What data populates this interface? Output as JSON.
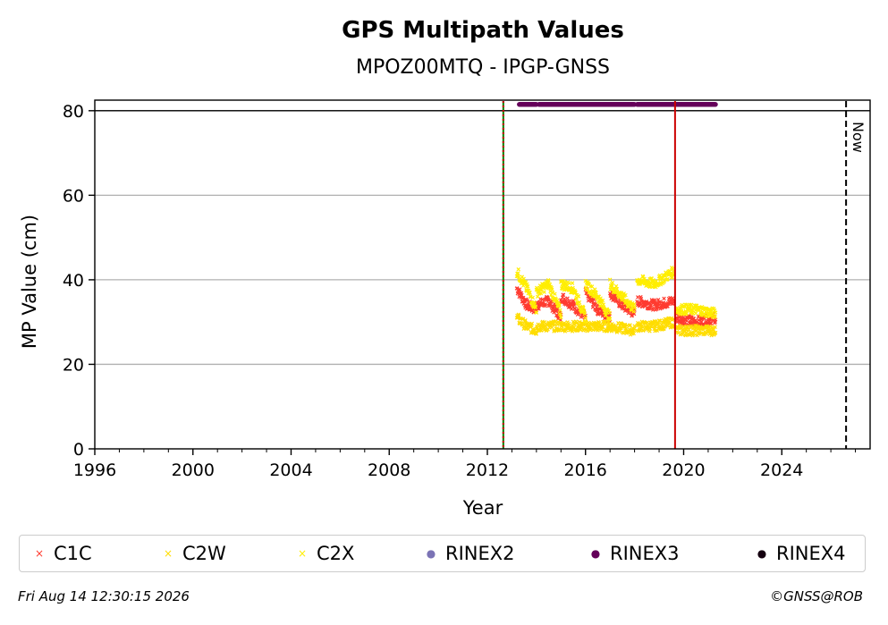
{
  "chart_data": {
    "type": "scatter",
    "title": "GPS Multipath Values",
    "subtitle": "MPOZ00MTQ - IPGP-GNSS",
    "xlabel": "Year",
    "ylabel": "MP Value (cm)",
    "xlim": [
      1996,
      2027.6
    ],
    "ylim": [
      0,
      82.5
    ],
    "x_ticks": [
      1996,
      2000,
      2004,
      2008,
      2012,
      2016,
      2020,
      2024
    ],
    "y_ticks": [
      0,
      20,
      40,
      60,
      80
    ],
    "grid": "horizontal",
    "reference_line_y": 80,
    "vertical_lines": [
      {
        "x": 2012.65,
        "color": "#008000",
        "style": "solid"
      },
      {
        "x": 2012.65,
        "color": "#cc0000",
        "style": "dotted"
      },
      {
        "x": 2019.65,
        "color": "#cc0000",
        "style": "solid"
      },
      {
        "x": 2026.62,
        "color": "#000000",
        "style": "dashed",
        "label": "Now"
      }
    ],
    "series": [
      {
        "name": "C1C",
        "color": "#ff3b30",
        "marker": "x",
        "segments": [
          {
            "x": [
              2013.2,
              2013.6,
              2014.0
            ],
            "y": [
              38,
              34,
              33
            ]
          },
          {
            "x": [
              2014.0,
              2014.5,
              2015.0
            ],
            "y": [
              34,
              35,
              31
            ]
          },
          {
            "x": [
              2015.0,
              2015.5,
              2016.0
            ],
            "y": [
              36,
              34,
              31
            ]
          },
          {
            "x": [
              2016.0,
              2016.5,
              2017.0
            ],
            "y": [
              37,
              33,
              31
            ]
          },
          {
            "x": [
              2017.0,
              2017.5,
              2018.0
            ],
            "y": [
              37,
              34,
              32
            ]
          },
          {
            "x": [
              2018.1,
              2018.8,
              2019.6
            ],
            "y": [
              35,
              34,
              35
            ]
          },
          {
            "x": [
              2019.7,
              2020.5,
              2021.3
            ],
            "y": [
              31,
              30,
              31
            ]
          }
        ]
      },
      {
        "name": "C2W",
        "color": "#ffdd00",
        "marker": "x",
        "segments": [
          {
            "x": [
              2013.2,
              2013.6,
              2014.0
            ],
            "y": [
              31,
              29,
              28
            ]
          },
          {
            "x": [
              2014.0,
              2015.0,
              2016.0
            ],
            "y": [
              29,
              29,
              29
            ]
          },
          {
            "x": [
              2016.0,
              2017.0,
              2018.0
            ],
            "y": [
              29,
              29,
              28
            ]
          },
          {
            "x": [
              2018.1,
              2018.8,
              2019.6
            ],
            "y": [
              29,
              29,
              30
            ]
          },
          {
            "x": [
              2019.7,
              2020.5,
              2021.3
            ],
            "y": [
              28,
              28,
              28
            ]
          }
        ]
      },
      {
        "name": "C2X",
        "color": "#ffee00",
        "marker": "x",
        "segments": [
          {
            "x": [
              2013.2,
              2013.6,
              2014.0
            ],
            "y": [
              42,
              38,
              33
            ]
          },
          {
            "x": [
              2014.0,
              2014.5,
              2015.0
            ],
            "y": [
              37,
              39,
              32
            ]
          },
          {
            "x": [
              2015.0,
              2015.5,
              2016.0
            ],
            "y": [
              39,
              38,
              31
            ]
          },
          {
            "x": [
              2016.0,
              2016.5,
              2017.0
            ],
            "y": [
              39,
              36,
              31
            ]
          },
          {
            "x": [
              2017.0,
              2017.5,
              2018.0
            ],
            "y": [
              39,
              36,
              33
            ]
          },
          {
            "x": [
              2018.1,
              2018.8,
              2019.6
            ],
            "y": [
              40,
              39,
              42
            ]
          },
          {
            "x": [
              2019.7,
              2020.5,
              2021.3
            ],
            "y": [
              33,
              33,
              32
            ]
          }
        ]
      },
      {
        "name": "RINEX2",
        "color": "#7b73b5",
        "marker": "o",
        "segments": []
      },
      {
        "name": "RINEX3",
        "color": "#65005a",
        "marker": "o",
        "segments": [
          {
            "x": [
              2013.3,
              2014.0
            ],
            "y": [
              81.5,
              81.5
            ]
          },
          {
            "x": [
              2014.1,
              2018.0
            ],
            "y": [
              81.5,
              81.5
            ]
          },
          {
            "x": [
              2018.1,
              2021.3
            ],
            "y": [
              81.5,
              81.5
            ]
          }
        ]
      },
      {
        "name": "RINEX4",
        "color": "#150010",
        "marker": "o",
        "segments": []
      }
    ]
  },
  "now_label": "Now",
  "legend": [
    {
      "label": "C1C",
      "symbol": "×",
      "color": "#ff3b30"
    },
    {
      "label": "C2W",
      "symbol": "×",
      "color": "#ffdd00"
    },
    {
      "label": "C2X",
      "symbol": "×",
      "color": "#ffee00"
    },
    {
      "label": "RINEX2",
      "symbol": "●",
      "color": "#7b73b5"
    },
    {
      "label": "RINEX3",
      "symbol": "●",
      "color": "#65005a"
    },
    {
      "label": "RINEX4",
      "symbol": "●",
      "color": "#150010"
    }
  ],
  "footer": {
    "timestamp": "Fri Aug 14 12:30:15 2026",
    "credit": "©GNSS@ROB"
  }
}
